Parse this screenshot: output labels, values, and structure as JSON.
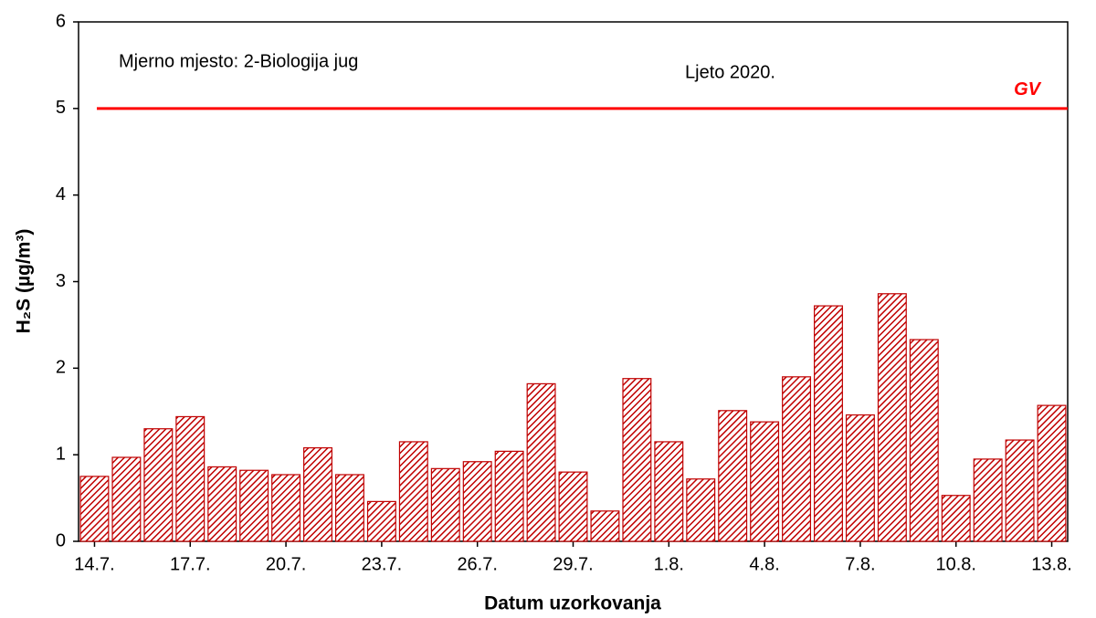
{
  "chart_data": {
    "type": "bar",
    "annotations": [
      "Mjerno mjesto: 2-Biologija jug",
      "Ljeto 2020."
    ],
    "x_label": "Datum uzorkovanja",
    "y_label": "H₂S (µg/m³)",
    "categories": [
      "14.7.",
      null,
      null,
      "17.7.",
      null,
      null,
      "20.7.",
      null,
      null,
      "23.7.",
      null,
      null,
      "26.7.",
      null,
      null,
      "29.7.",
      null,
      null,
      "1.8.",
      null,
      null,
      "4.8.",
      null,
      null,
      "7.8.",
      null,
      null,
      "10.8.",
      null,
      null,
      "13.8."
    ],
    "values": [
      0.75,
      0.97,
      1.3,
      1.44,
      0.86,
      0.82,
      0.77,
      1.08,
      0.77,
      0.46,
      1.15,
      0.84,
      0.92,
      1.04,
      1.82,
      0.8,
      0.35,
      1.88,
      1.15,
      0.72,
      1.51,
      1.38,
      1.9,
      2.72,
      1.46,
      2.86,
      2.33,
      0.53,
      0.95,
      1.17,
      1.57
    ],
    "color": "#c00000",
    "ylim": [
      0,
      6
    ],
    "yticks": [
      0,
      1,
      2,
      3,
      4,
      5,
      6
    ],
    "reference_line": {
      "value": 5,
      "label": "GV",
      "color": "#ff0000"
    }
  }
}
